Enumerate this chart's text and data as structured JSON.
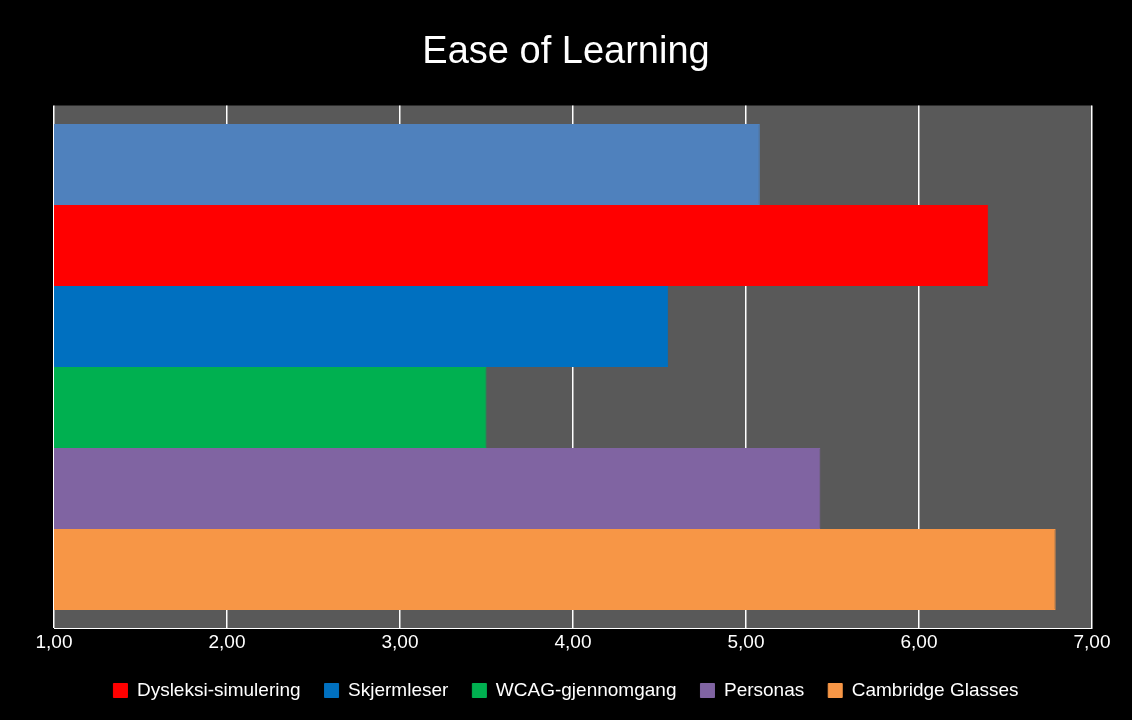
{
  "chart_data": {
    "type": "bar",
    "title": "Ease of Learning",
    "orientation": "horizontal",
    "categories": [
      null
    ],
    "series": [
      {
        "color": "#4f81bd",
        "values": [
          5.08
        ]
      },
      {
        "name": "Dysleksi-simulering",
        "color": "#ff0000",
        "values": [
          6.4
        ]
      },
      {
        "name": "Skjermleser",
        "color": "#0070c0",
        "values": [
          4.55
        ]
      },
      {
        "name": "WCAG-gjennomgang",
        "color": "#00b050",
        "values": [
          3.5
        ]
      },
      {
        "name": "Personas",
        "color": "#8064a2",
        "values": [
          5.43
        ]
      },
      {
        "name": "Cambridge Glasses",
        "color": "#f79646",
        "values": [
          6.79
        ]
      }
    ],
    "xlim": [
      1,
      7
    ],
    "xticks": [
      {
        "value": 1,
        "label": "1,00"
      },
      {
        "value": 2,
        "label": "2,00"
      },
      {
        "value": 3,
        "label": "3,00"
      },
      {
        "value": 4,
        "label": "4,00"
      },
      {
        "value": 5,
        "label": "5,00"
      },
      {
        "value": 6,
        "label": "6,00"
      },
      {
        "value": 7,
        "label": "7,00"
      }
    ],
    "grid": "x",
    "legend": "bottom"
  }
}
